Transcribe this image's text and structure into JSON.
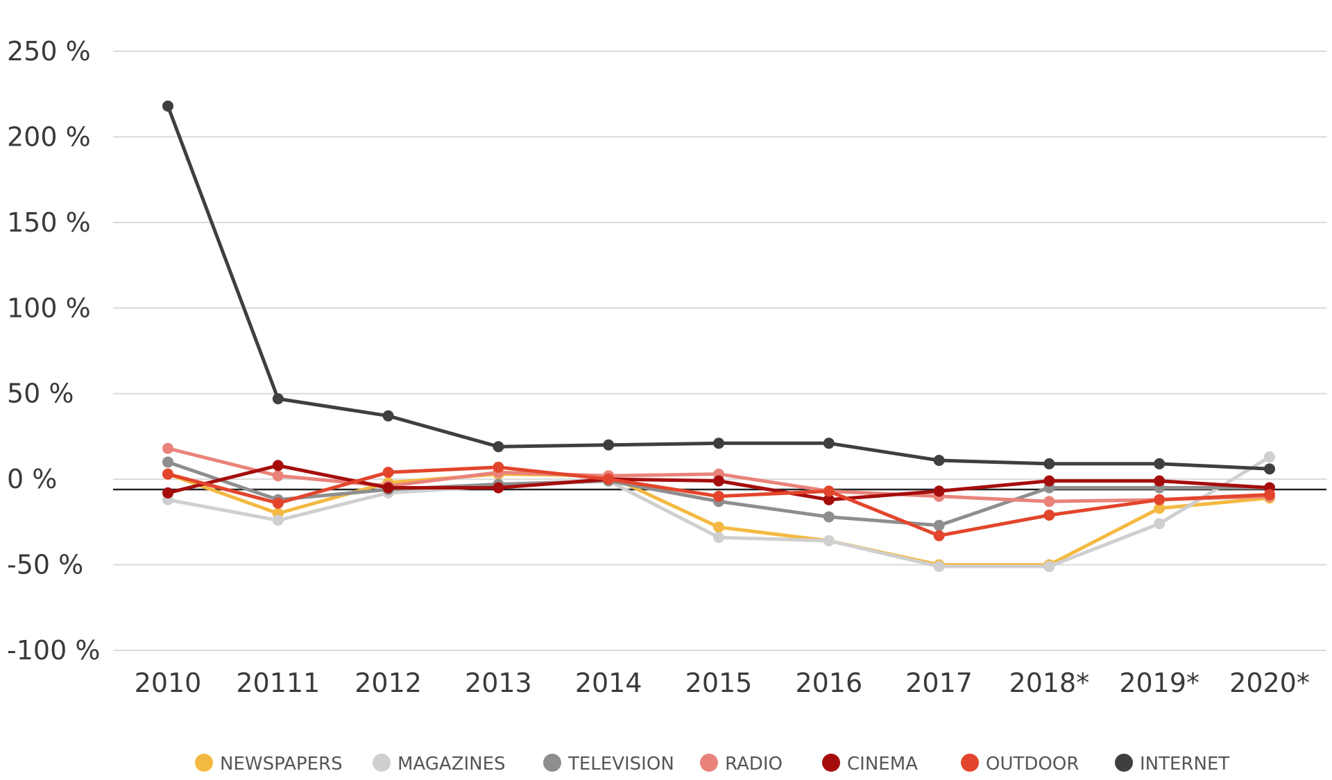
{
  "chart_data": {
    "type": "line",
    "title": "",
    "xlabel": "",
    "ylabel": "",
    "categories": [
      "2010",
      "20111",
      "2012",
      "2013",
      "2014",
      "2015",
      "2016",
      "2017",
      "2018*",
      "2019*",
      "2020*"
    ],
    "y_ticks": [
      250,
      200,
      150,
      100,
      50,
      0,
      -50,
      -100
    ],
    "y_tick_labels": [
      "250 %",
      "200 %",
      "150 %",
      "100 %",
      "50 %",
      "0 %",
      "-50 %",
      "-100 %"
    ],
    "ylim": [
      -100,
      250
    ],
    "zero_line": -6,
    "grid": true,
    "legend_position": "bottom",
    "series": [
      {
        "name": "NEWSPAPERS",
        "color": "#f4b942",
        "values": [
          3,
          -20,
          -2,
          3,
          2,
          -28,
          -36,
          -50,
          -50,
          -17,
          -11
        ]
      },
      {
        "name": "MAGAZINES",
        "color": "#cfcfcf",
        "values": [
          -12,
          -24,
          -8,
          -4,
          -1,
          -34,
          -36,
          -51,
          -51,
          -26,
          13
        ]
      },
      {
        "name": "TELEVISION",
        "color": "#8e8e8e",
        "values": [
          10,
          -12,
          -6,
          -3,
          -1,
          -13,
          -22,
          -27,
          -5,
          -5,
          -5
        ]
      },
      {
        "name": "RADIO",
        "color": "#e9837a",
        "values": [
          18,
          2,
          -4,
          4,
          2,
          3,
          -7,
          -10,
          -13,
          -12,
          -10
        ]
      },
      {
        "name": "CINEMA",
        "color": "#a50d0d",
        "values": [
          -8,
          8,
          -5,
          -5,
          0,
          -1,
          -12,
          -7,
          -1,
          -1,
          -5
        ]
      },
      {
        "name": "OUTDOOR",
        "color": "#e2452c",
        "values": [
          3,
          -14,
          4,
          7,
          0,
          -10,
          -7,
          -33,
          -21,
          -12,
          -9
        ]
      },
      {
        "name": "INTERNET",
        "color": "#3f3f3f",
        "values": [
          218,
          47,
          37,
          19,
          20,
          21,
          21,
          11,
          9,
          9,
          6
        ]
      }
    ]
  }
}
